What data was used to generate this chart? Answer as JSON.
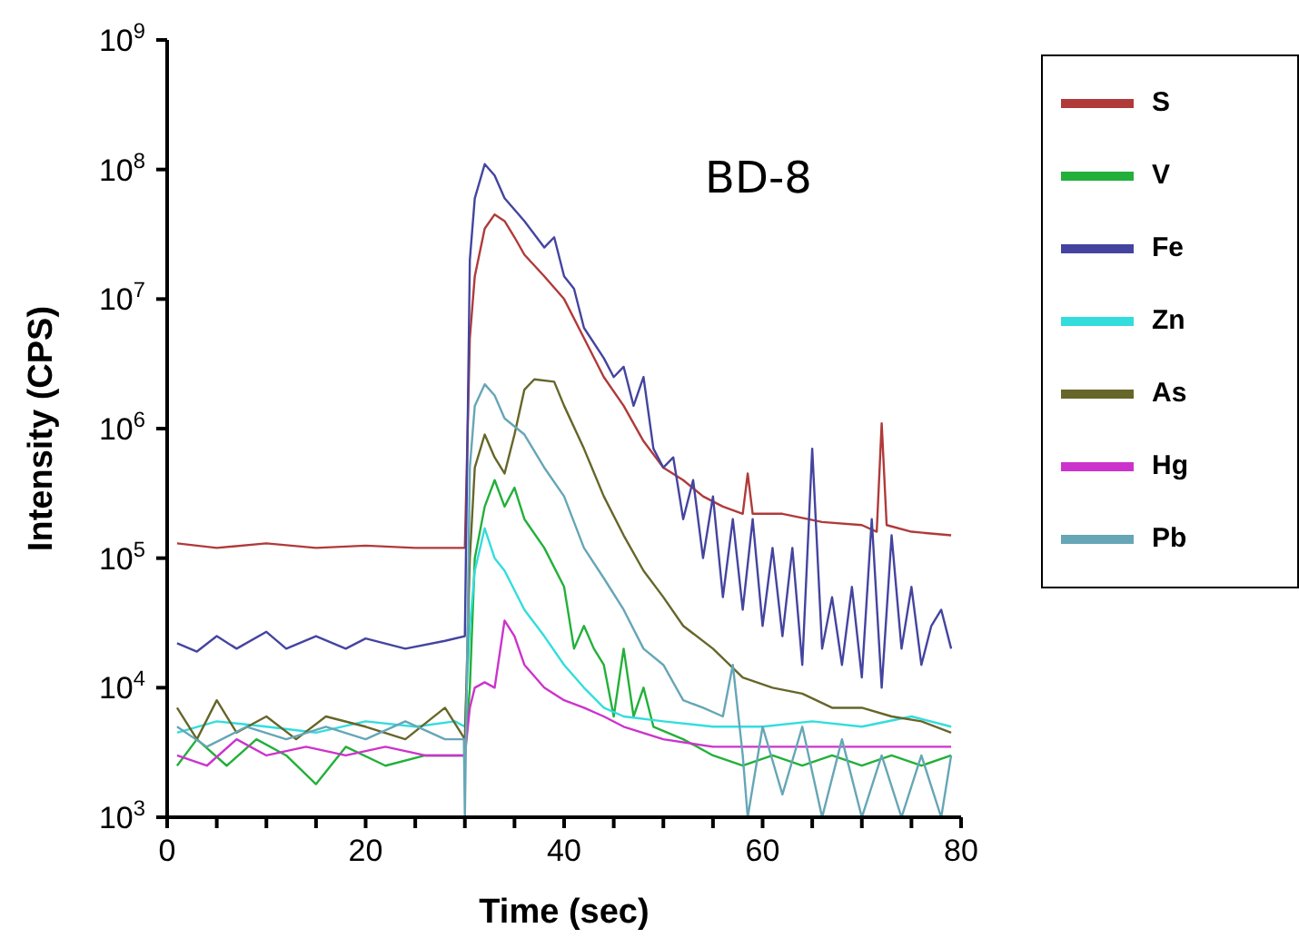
{
  "chart_data": {
    "type": "line",
    "annotations": [
      "BD-8"
    ],
    "xlabel": "Time (sec)",
    "ylabel": "Intensity (CPS)",
    "xlim": [
      0,
      80
    ],
    "xticks": [
      0,
      {
        "value": 5,
        "label": null
      },
      {
        "value": 10,
        "label": null
      },
      {
        "value": 15,
        "label": null
      },
      20,
      {
        "value": 25,
        "label": null
      },
      {
        "value": 30,
        "label": null
      },
      {
        "value": 35,
        "label": null
      },
      40,
      {
        "value": 45,
        "label": null
      },
      {
        "value": 50,
        "label": null
      },
      {
        "value": 55,
        "label": null
      },
      60,
      {
        "value": 65,
        "label": null
      },
      {
        "value": 70,
        "label": null
      },
      {
        "value": 75,
        "label": null
      },
      80
    ],
    "ylim": [
      1000,
      1000000000
    ],
    "yticks": [
      {
        "value": 1000,
        "label": "10$^{3}$"
      },
      {
        "value": 10000,
        "label": "10$^{4}$"
      },
      {
        "value": 100000,
        "label": "10$^{5}$"
      },
      {
        "value": 1000000,
        "label": "10$^{6}$"
      },
      {
        "value": 10000000,
        "label": "10$^{7}$"
      },
      {
        "value": 100000000,
        "label": "10$^{8}$"
      },
      {
        "value": 1000000000,
        "label": "10$^{9}$"
      }
    ],
    "log": "y",
    "grid": false,
    "legend": "top right",
    "marker": "none",
    "line_style": "solid",
    "series": [
      {
        "name": "S",
        "color": "#b03a3a",
        "x": [
          1,
          5,
          10,
          15,
          20,
          25,
          30,
          30.5,
          31,
          32,
          33,
          34,
          35,
          36,
          38,
          40,
          42,
          44,
          46,
          48,
          50,
          52,
          54,
          56,
          58,
          58.5,
          59,
          62,
          66,
          70,
          71.5,
          72,
          72.5,
          75,
          79
        ],
        "values": [
          130000,
          120000,
          130000,
          120000,
          125000,
          120000,
          120000,
          5000000,
          15000000,
          35000000,
          45000000,
          40000000,
          30000000,
          22000000,
          15000000,
          10000000,
          5000000,
          2500000,
          1500000,
          800000,
          500000,
          400000,
          300000,
          250000,
          220000,
          450000,
          220000,
          220000,
          190000,
          180000,
          160000,
          1100000,
          180000,
          160000,
          150000
        ]
      },
      {
        "name": "V",
        "color": "#22b03a",
        "x": [
          1,
          3,
          6,
          9,
          12,
          15,
          18,
          22,
          26,
          30,
          30.5,
          31,
          32,
          33,
          34,
          35,
          36,
          38,
          40,
          41,
          42,
          43,
          44,
          45,
          46,
          47,
          48,
          49,
          52,
          55,
          58,
          61,
          64,
          67,
          70,
          73,
          76,
          79
        ],
        "values": [
          2500,
          4000,
          2500,
          4000,
          3000,
          1800,
          3500,
          2500,
          3000,
          3000,
          10000,
          100000,
          250000,
          400000,
          250000,
          350000,
          200000,
          120000,
          60000,
          20000,
          30000,
          20000,
          15000,
          6000,
          20000,
          6000,
          10000,
          5000,
          4000,
          3000,
          2500,
          3000,
          2500,
          3000,
          2500,
          3000,
          2500,
          3000
        ]
      },
      {
        "name": "Fe",
        "color": "#4444a0",
        "x": [
          1,
          3,
          5,
          7,
          10,
          12,
          15,
          18,
          20,
          24,
          28,
          30,
          30.5,
          31,
          32,
          33,
          34,
          36,
          38,
          39,
          40,
          41,
          42,
          44,
          45,
          46,
          47,
          48,
          49,
          50,
          51,
          52,
          53,
          54,
          55,
          56,
          57,
          58,
          59,
          60,
          61,
          62,
          63,
          64,
          65,
          66,
          67,
          68,
          69,
          70,
          71,
          72,
          73,
          74,
          75,
          76,
          77,
          78,
          79
        ],
        "values": [
          22000,
          19000,
          25000,
          20000,
          27000,
          20000,
          25000,
          20000,
          24000,
          20000,
          23000,
          25000,
          20000000,
          60000000,
          110000000,
          90000000,
          60000000,
          40000000,
          25000000,
          30000000,
          15000000,
          12000000,
          6000000,
          3500000,
          2500000,
          3000000,
          1500000,
          2500000,
          700000,
          500000,
          600000,
          200000,
          400000,
          100000,
          300000,
          50000,
          200000,
          40000,
          200000,
          30000,
          120000,
          25000,
          120000,
          15000,
          700000,
          20000,
          50000,
          15000,
          60000,
          12000,
          200000,
          10000,
          150000,
          20000,
          60000,
          15000,
          30000,
          40000,
          20000
        ]
      },
      {
        "name": "Zn",
        "color": "#33dddd",
        "x": [
          1,
          5,
          10,
          15,
          20,
          25,
          29,
          30,
          30.5,
          31,
          32,
          33,
          34,
          36,
          38,
          40,
          42,
          44,
          46,
          50,
          55,
          60,
          65,
          70,
          75,
          79
        ],
        "values": [
          4500,
          5500,
          5000,
          4500,
          5500,
          5000,
          5500,
          5000,
          30000,
          80000,
          170000,
          100000,
          80000,
          40000,
          25000,
          15000,
          10000,
          7000,
          6000,
          5500,
          5000,
          5000,
          5500,
          5000,
          6000,
          5000
        ]
      },
      {
        "name": "As",
        "color": "#66662a",
        "x": [
          1,
          3,
          5,
          7,
          10,
          13,
          16,
          20,
          24,
          28,
          30,
          30.5,
          31,
          32,
          33,
          34,
          35,
          36,
          37,
          39,
          40,
          42,
          44,
          46,
          48,
          50,
          52,
          55,
          58,
          61,
          64,
          67,
          70,
          73,
          76,
          79
        ],
        "values": [
          7000,
          4000,
          8000,
          4500,
          6000,
          4000,
          6000,
          5000,
          4000,
          7000,
          4000,
          100000,
          500000,
          900000,
          600000,
          450000,
          900000,
          2000000,
          2400000,
          2300000,
          1500000,
          700000,
          300000,
          150000,
          80000,
          50000,
          30000,
          20000,
          12000,
          10000,
          9000,
          7000,
          7000,
          6000,
          5500,
          4500
        ]
      },
      {
        "name": "Hg",
        "color": "#cc33cc",
        "x": [
          1,
          4,
          7,
          10,
          14,
          18,
          22,
          26,
          30,
          30.5,
          31,
          32,
          33,
          34,
          35,
          36,
          38,
          40,
          42,
          44,
          46,
          50,
          55,
          60,
          65,
          70,
          75,
          79
        ],
        "values": [
          3000,
          2500,
          4000,
          3000,
          3500,
          3000,
          3500,
          3000,
          3000,
          7000,
          10000,
          11000,
          10000,
          33000,
          25000,
          15000,
          10000,
          8000,
          7000,
          6000,
          5000,
          4000,
          3500,
          3500,
          3500,
          3500,
          3500,
          3500
        ]
      },
      {
        "name": "Pb",
        "color": "#66a6b6",
        "x": [
          1,
          4,
          8,
          12,
          16,
          20,
          24,
          28,
          29.9,
          30,
          30.5,
          31,
          32,
          33,
          34,
          36,
          38,
          40,
          42,
          44,
          46,
          48,
          50,
          52,
          54,
          56,
          57,
          58,
          58.5,
          60,
          62,
          64,
          66,
          68,
          70,
          72,
          74,
          76,
          78,
          79
        ],
        "values": [
          5000,
          3500,
          5000,
          4000,
          5000,
          4000,
          5500,
          4000,
          4000,
          1000,
          500000,
          1500000,
          2200000,
          1800000,
          1200000,
          900000,
          500000,
          300000,
          120000,
          70000,
          40000,
          20000,
          15000,
          8000,
          7000,
          6000,
          15000,
          3000,
          1000,
          5000,
          1500,
          5000,
          1000,
          4000,
          1000,
          3000,
          1000,
          3000,
          1000,
          3000
        ]
      }
    ]
  }
}
